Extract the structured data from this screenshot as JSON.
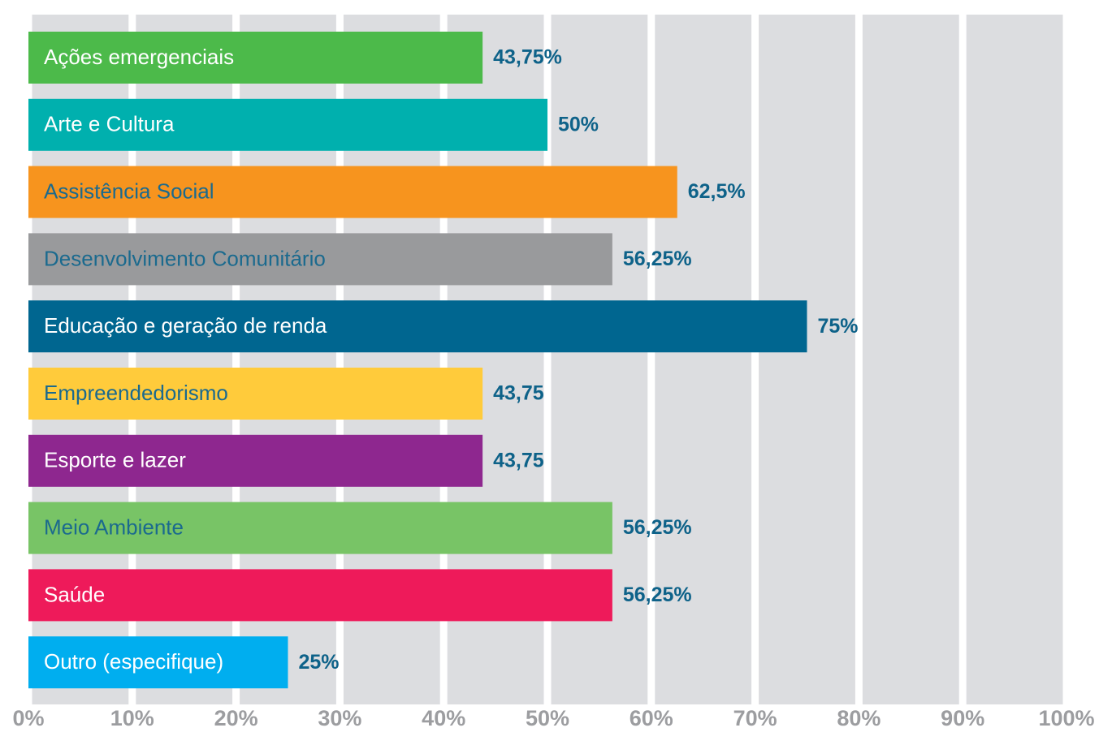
{
  "chart_data": {
    "type": "barh",
    "categories": [
      "Ações emergenciais",
      "Arte e Cultura",
      "Assistência Social",
      "Desenvolvimento Comunitário",
      "Educação e geração de renda",
      "Empreendedorismo",
      "Esporte e lazer",
      "Meio Ambiente",
      "Saúde",
      "Outro (especifique)"
    ],
    "values": [
      43.75,
      50,
      62.5,
      56.25,
      75,
      43.75,
      43.75,
      56.25,
      56.25,
      25
    ],
    "value_labels": [
      "43,75%",
      "50%",
      "62,5%",
      "56,25%",
      "75%",
      "43,75",
      "43,75",
      "56,25%",
      "56,25%",
      "25%"
    ],
    "colors": [
      "#4cba4a",
      "#00b0ae",
      "#f7941e",
      "#999a9c",
      "#006690",
      "#ffcb3b",
      "#8e278f",
      "#78c466",
      "#ee1a5a",
      "#00aeef"
    ],
    "xlim": [
      0,
      100
    ],
    "xticks": [
      {
        "value": 0,
        "label": "0%"
      },
      {
        "value": 10,
        "label": "10%"
      },
      {
        "value": 20,
        "label": "20%"
      },
      {
        "value": 30,
        "label": "30%"
      },
      {
        "value": 40,
        "label": "40%"
      },
      {
        "value": 50,
        "label": "50%"
      },
      {
        "value": 60,
        "label": "60%"
      },
      {
        "value": 70,
        "label": "70%"
      },
      {
        "value": 80,
        "label": "80%"
      },
      {
        "value": 90,
        "label": "90%"
      },
      {
        "value": 100,
        "label": "100%"
      }
    ],
    "grid": true
  }
}
